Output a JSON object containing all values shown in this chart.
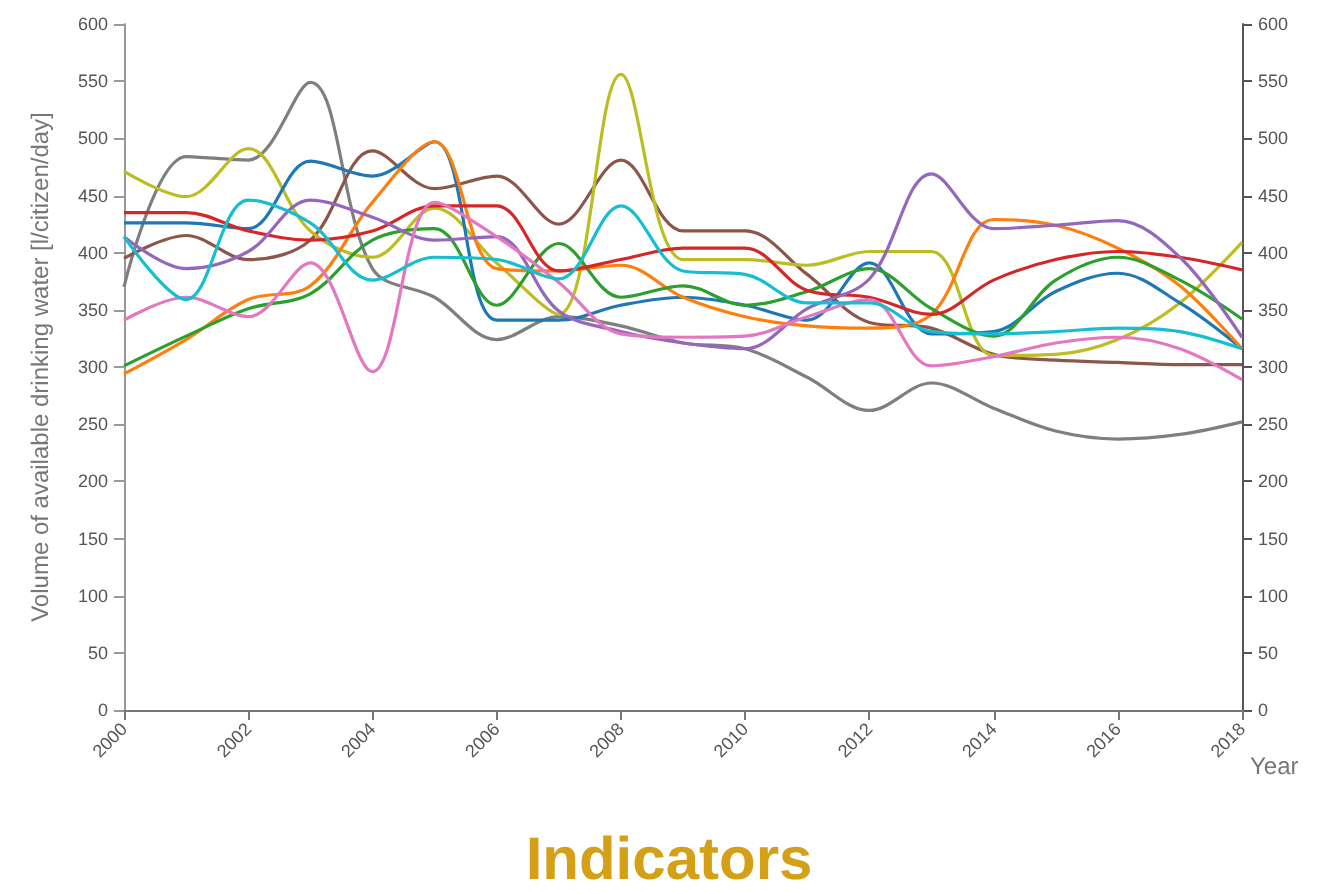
{
  "chart_data": {
    "type": "line",
    "xlabel": "Year",
    "ylabel": "Volume of available drinking water [l/citizen/day]",
    "annotations": [
      "Indicators"
    ],
    "x": [
      2000,
      2001,
      2002,
      2003,
      2004,
      2005,
      2006,
      2007,
      2008,
      2009,
      2010,
      2011,
      2012,
      2013,
      2014,
      2015,
      2016,
      2017,
      2018
    ],
    "xlim": [
      2000,
      2018
    ],
    "xticks": [
      2000,
      2002,
      2004,
      2006,
      2008,
      2010,
      2012,
      2014,
      2016,
      2018
    ],
    "ylim": [
      0,
      600
    ],
    "yticks": [
      0,
      50,
      100,
      150,
      200,
      250,
      300,
      350,
      400,
      450,
      500,
      550,
      600
    ],
    "y2lim": [
      0,
      600
    ],
    "y2ticks": [
      0,
      50,
      100,
      150,
      200,
      250,
      300,
      350,
      400,
      450,
      500,
      550,
      600
    ],
    "grid": false,
    "marker": "none",
    "series": [
      {
        "color": "#7f7f7f",
        "values": [
          370,
          484,
          481,
          549,
          386,
          361,
          324,
          344,
          336,
          321,
          316,
          291,
          262,
          286,
          264,
          244,
          237,
          241,
          252
        ]
      },
      {
        "color": "#8c564b",
        "values": [
          395,
          415,
          394,
          411,
          489,
          456,
          467,
          425,
          481,
          419,
          419,
          381,
          339,
          334,
          311,
          306,
          304,
          302,
          302
        ]
      },
      {
        "color": "#bcbd22",
        "values": [
          471,
          449,
          491,
          419,
          396,
          439,
          391,
          346,
          556,
          394,
          394,
          389,
          401,
          401,
          310,
          311,
          324,
          356,
          409
        ]
      },
      {
        "color": "#1f77b4",
        "values": [
          426,
          426,
          421,
          480,
          467,
          497,
          341,
          341,
          354,
          361,
          354,
          341,
          391,
          329,
          331,
          366,
          382,
          356,
          316
        ]
      },
      {
        "color": "#ff7f0e",
        "values": [
          294,
          324,
          359,
          371,
          444,
          497,
          386,
          384,
          389,
          361,
          344,
          336,
          334,
          346,
          429,
          424,
          404,
          371,
          316
        ]
      },
      {
        "color": "#2ca02c",
        "values": [
          301,
          327,
          351,
          364,
          411,
          421,
          354,
          408,
          361,
          371,
          354,
          366,
          386,
          351,
          327,
          376,
          396,
          376,
          342
        ]
      },
      {
        "color": "#d62728",
        "values": [
          435,
          435,
          419,
          411,
          419,
          441,
          441,
          384,
          394,
          404,
          404,
          367,
          361,
          346,
          376,
          394,
          401,
          396,
          385
        ]
      },
      {
        "color": "#9467bd",
        "values": [
          414,
          386,
          401,
          446,
          431,
          411,
          414,
          349,
          331,
          321,
          316,
          351,
          377,
          469,
          421,
          424,
          428,
          396,
          326
        ]
      },
      {
        "color": "#e377c2",
        "values": [
          341,
          361,
          344,
          391,
          296,
          444,
          414,
          374,
          329,
          326,
          327,
          344,
          359,
          301,
          309,
          321,
          326,
          316,
          289
        ]
      },
      {
        "color": "#17becf",
        "values": [
          414,
          359,
          446,
          426,
          376,
          396,
          394,
          377,
          441,
          384,
          381,
          356,
          356,
          331,
          329,
          331,
          334,
          331,
          316
        ]
      }
    ]
  }
}
